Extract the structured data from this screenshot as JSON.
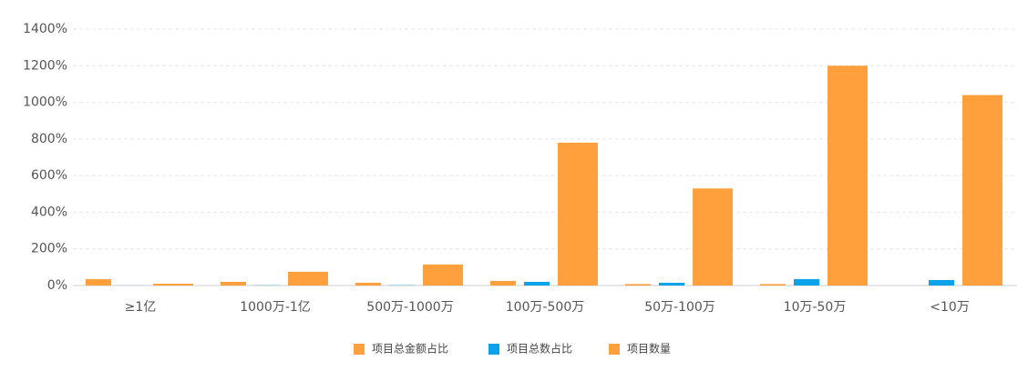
{
  "chart_data": {
    "type": "bar",
    "categories": [
      "≥1亿",
      "1000万-1亿",
      "500万-1000万",
      "100万-500万",
      "50万-100万",
      "10万-50万",
      "<10万"
    ],
    "series": [
      {
        "name": "项目总金额占比",
        "color": "#ffa03c",
        "values": [
          35,
          20,
          15,
          25,
          8,
          8,
          0
        ]
      },
      {
        "name": "项目总数占比",
        "color": "#0aa3ea",
        "values": [
          1,
          3,
          4,
          20,
          15,
          35,
          30
        ]
      },
      {
        "name": "项目数量",
        "color": "#ffa03c",
        "values": [
          10,
          75,
          115,
          780,
          530,
          1200,
          1040
        ]
      }
    ],
    "ylim": [
      0,
      1400
    ],
    "yticks": [
      {
        "value": 0,
        "label": "0%"
      },
      {
        "value": 200,
        "label": "200%"
      },
      {
        "value": 400,
        "label": "400%"
      },
      {
        "value": 600,
        "label": "600%"
      },
      {
        "value": 800,
        "label": "800%"
      },
      {
        "value": 1000,
        "label": "1000%"
      },
      {
        "value": 1200,
        "label": "1200%"
      },
      {
        "value": 1400,
        "label": "1400%"
      }
    ],
    "grid": true,
    "legend": "bottom"
  }
}
